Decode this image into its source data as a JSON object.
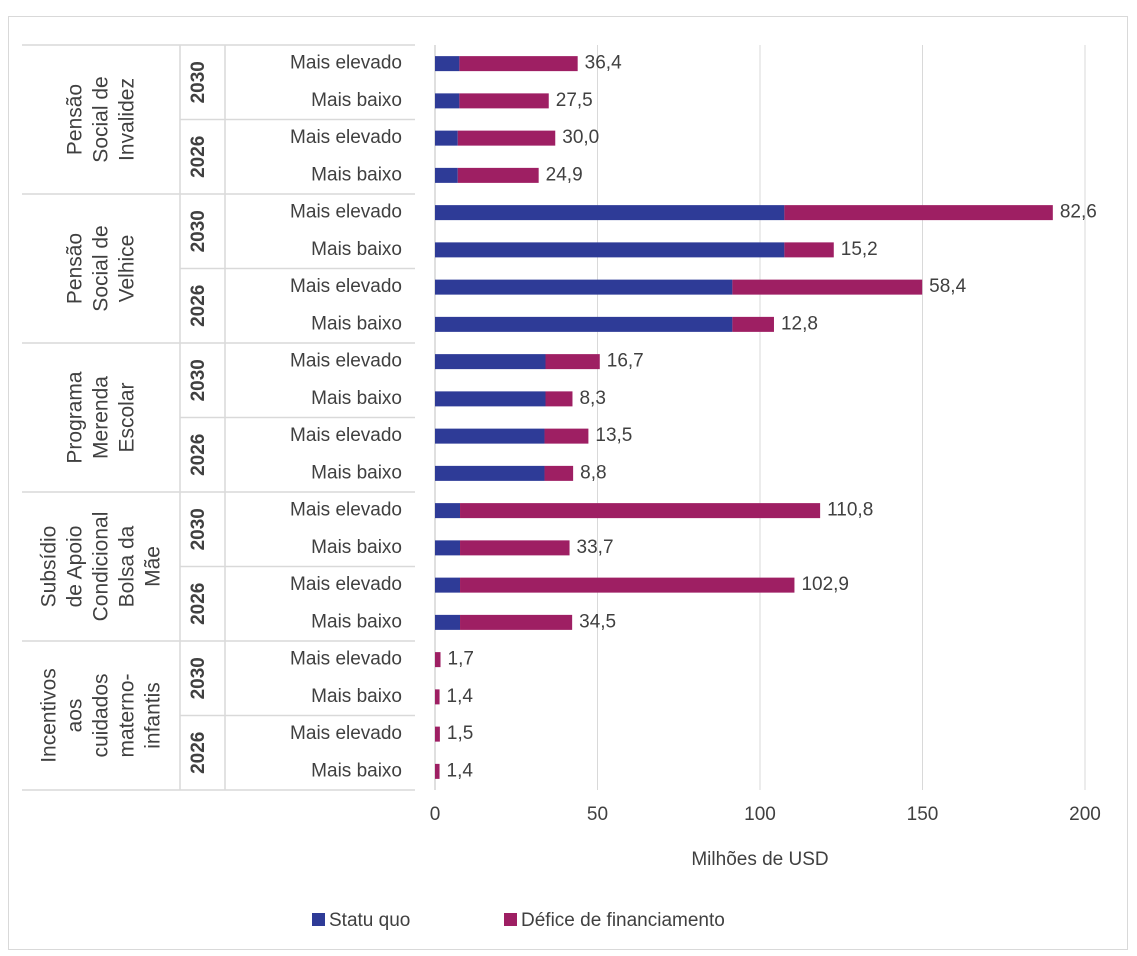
{
  "chart_data": {
    "type": "bar",
    "orientation": "horizontal",
    "stacked": true,
    "xlabel": "Milhões de USD",
    "xlim": [
      0,
      200
    ],
    "xticks": [
      0,
      50,
      100,
      150,
      200
    ],
    "grid": true,
    "legend_position": "bottom",
    "series": [
      {
        "name": "Statu quo",
        "color": "#2E3B97"
      },
      {
        "name": "Défice de financiamento",
        "color": "#9E1F63"
      }
    ],
    "groups": [
      {
        "label": [
          "Pensão",
          "Social de",
          "Invalidez"
        ],
        "years": [
          {
            "year": "2030",
            "rows": [
              {
                "label": "Mais elevado",
                "statu_quo": 7.5,
                "deficit": 36.4,
                "data_label": "36,4"
              },
              {
                "label": "Mais baixo",
                "statu_quo": 7.5,
                "deficit": 27.5,
                "data_label": "27,5"
              }
            ]
          },
          {
            "year": "2026",
            "rows": [
              {
                "label": "Mais elevado",
                "statu_quo": 7.0,
                "deficit": 30.0,
                "data_label": "30,0"
              },
              {
                "label": "Mais baixo",
                "statu_quo": 7.0,
                "deficit": 24.9,
                "data_label": "24,9"
              }
            ]
          }
        ]
      },
      {
        "label": [
          "Pensão",
          "Social de",
          "Velhice"
        ],
        "years": [
          {
            "year": "2030",
            "rows": [
              {
                "label": "Mais elevado",
                "statu_quo": 107.5,
                "deficit": 82.6,
                "data_label": "82,6"
              },
              {
                "label": "Mais baixo",
                "statu_quo": 107.5,
                "deficit": 15.2,
                "data_label": "15,2"
              }
            ]
          },
          {
            "year": "2026",
            "rows": [
              {
                "label": "Mais elevado",
                "statu_quo": 91.5,
                "deficit": 58.4,
                "data_label": "58,4"
              },
              {
                "label": "Mais baixo",
                "statu_quo": 91.5,
                "deficit": 12.8,
                "data_label": "12,8"
              }
            ]
          }
        ]
      },
      {
        "label": [
          "Programa",
          "Merenda",
          "Escolar"
        ],
        "years": [
          {
            "year": "2030",
            "rows": [
              {
                "label": "Mais elevado",
                "statu_quo": 34.0,
                "deficit": 16.7,
                "data_label": "16,7"
              },
              {
                "label": "Mais baixo",
                "statu_quo": 34.0,
                "deficit": 8.3,
                "data_label": "8,3"
              }
            ]
          },
          {
            "year": "2026",
            "rows": [
              {
                "label": "Mais elevado",
                "statu_quo": 33.7,
                "deficit": 13.5,
                "data_label": "13,5"
              },
              {
                "label": "Mais baixo",
                "statu_quo": 33.7,
                "deficit": 8.8,
                "data_label": "8,8"
              }
            ]
          }
        ]
      },
      {
        "label": [
          "Subsídio",
          "de Apoio",
          "Condicional",
          "Bolsa da",
          "Mãe"
        ],
        "years": [
          {
            "year": "2030",
            "rows": [
              {
                "label": "Mais elevado",
                "statu_quo": 7.7,
                "deficit": 110.8,
                "data_label": "110,8"
              },
              {
                "label": "Mais baixo",
                "statu_quo": 7.7,
                "deficit": 33.7,
                "data_label": "33,7"
              }
            ]
          },
          {
            "year": "2026",
            "rows": [
              {
                "label": "Mais elevado",
                "statu_quo": 7.7,
                "deficit": 102.9,
                "data_label": "102,9"
              },
              {
                "label": "Mais baixo",
                "statu_quo": 7.7,
                "deficit": 34.5,
                "data_label": "34,5"
              }
            ]
          }
        ]
      },
      {
        "label": [
          "Incentivos",
          "aos",
          "cuidados",
          "materno-",
          "infantis"
        ],
        "years": [
          {
            "year": "2030",
            "rows": [
              {
                "label": "Mais elevado",
                "statu_quo": 0,
                "deficit": 1.7,
                "data_label": "1,7"
              },
              {
                "label": "Mais baixo",
                "statu_quo": 0,
                "deficit": 1.4,
                "data_label": "1,4"
              }
            ]
          },
          {
            "year": "2026",
            "rows": [
              {
                "label": "Mais elevado",
                "statu_quo": 0,
                "deficit": 1.5,
                "data_label": "1,5"
              },
              {
                "label": "Mais baixo",
                "statu_quo": 0,
                "deficit": 1.4,
                "data_label": "1,4"
              }
            ]
          }
        ]
      }
    ]
  }
}
